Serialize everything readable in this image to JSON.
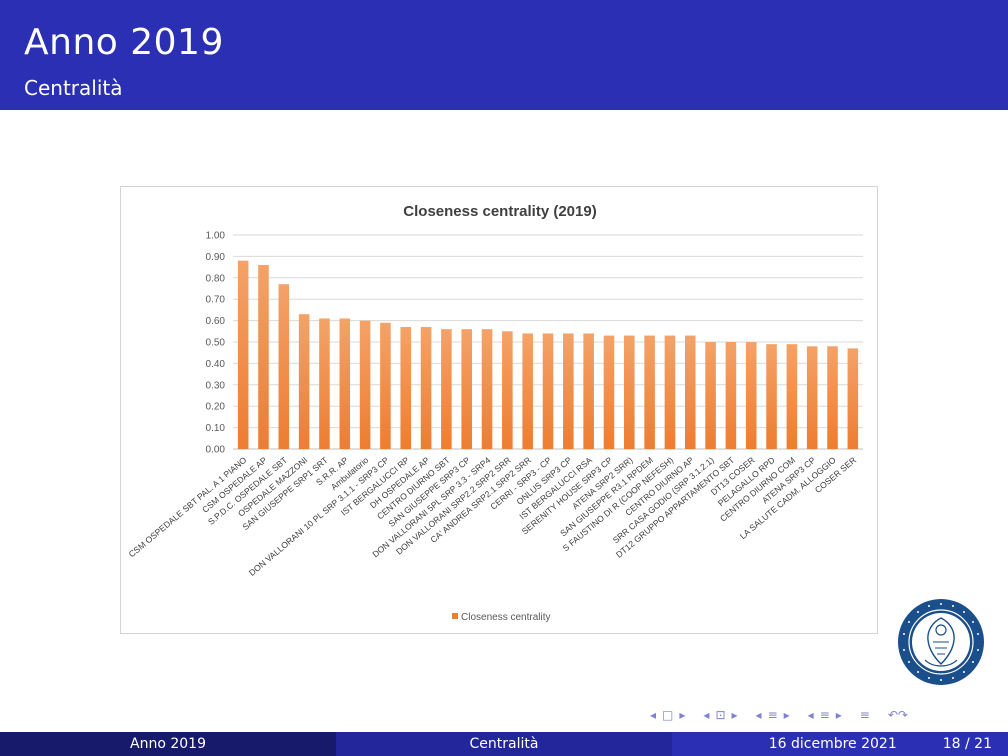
{
  "header": {
    "title": "Anno 2019",
    "subtitle": "Centralità"
  },
  "chart_data": {
    "type": "bar",
    "title": "Closeness centrality (2019)",
    "xlabel": "",
    "ylabel": "",
    "ylim": [
      0,
      1
    ],
    "yticks": [
      "0.00",
      "0.10",
      "0.20",
      "0.30",
      "0.40",
      "0.50",
      "0.60",
      "0.70",
      "0.80",
      "0.90",
      "1.00"
    ],
    "grid": true,
    "legend_position": "bottom",
    "bar_color": "#ed7d31",
    "bar_color_top": "#f4a268",
    "series": [
      {
        "name": "Closeness centrality"
      }
    ],
    "categories": [
      "CSM OSPEDALE SBT PAL. A 1 PIANO",
      "CSM OSPEDALE AP",
      "S.P.D.C. OSPEDALE SBT",
      "OSPEDALE MAZZONI",
      "SAN GIUSEPPE SRP1 SRT",
      "S.R.R. AP",
      "Ambulatorio",
      "DON VALLORANI 10 PL SRP 3.1.1 - SRP3 CP",
      "IST BERGALUCCI RP",
      "DH OSPEDALE AP",
      "CENTRO DIURNO SBT",
      "SAN GIUSEPPE SRP3 CP",
      "DON VALLORANI 5PL SRP 3.3 - SRP4",
      "DON VALLORANI SRP2.2 SRP2 SRR",
      "CA' ANDREA SRP2.1 SRP2 SRR",
      "CERRI - SRP3 - CP",
      "ONLUS SRP3 CP",
      "IST BERGALUCCI RSA",
      "SERENITY HOUSE SRP3 CP",
      "ATENA SRP2 SRR)",
      "SAN GIUSEPPE R3.1 RPDEM",
      "S FAUSTINO DI R (COOP NEFESH)",
      "CENTRO DIURNO AP",
      "SRR CASA GODIO (SRP 3.1.2.1)",
      "DT12 GRUPPO APPARTAMENTO SBT",
      "DT13 COSER",
      "PELAGALLO RPD",
      "CENTRO DIURNO COM",
      "ATENA SRP3 CP",
      "LA SALUTE CADM. ALLOGGIO",
      "COSER SER"
    ],
    "values": [
      0.88,
      0.86,
      0.77,
      0.63,
      0.61,
      0.61,
      0.6,
      0.59,
      0.57,
      0.57,
      0.56,
      0.56,
      0.56,
      0.55,
      0.54,
      0.54,
      0.54,
      0.54,
      0.53,
      0.53,
      0.53,
      0.53,
      0.53,
      0.5,
      0.5,
      0.5,
      0.49,
      0.49,
      0.48,
      0.48,
      0.47
    ]
  },
  "navigation": {
    "symbols": [
      "◂",
      "□",
      "▸",
      "◂",
      "⊡",
      "▸",
      "◂",
      "≡",
      "▸",
      "◂",
      "≡",
      "▸",
      "≡",
      "↶↷"
    ]
  },
  "footer": {
    "left": "Anno 2019",
    "center": "Centralità",
    "date": "16 dicembre 2021",
    "page": "18 / 21"
  },
  "colors": {
    "header_bg": "#2a2fb4",
    "footer_left_bg": "#171a6b",
    "footer_center_bg": "#22269a",
    "footer_right_bg": "#2a2fb4",
    "logo_blue": "#1a4f8c"
  }
}
